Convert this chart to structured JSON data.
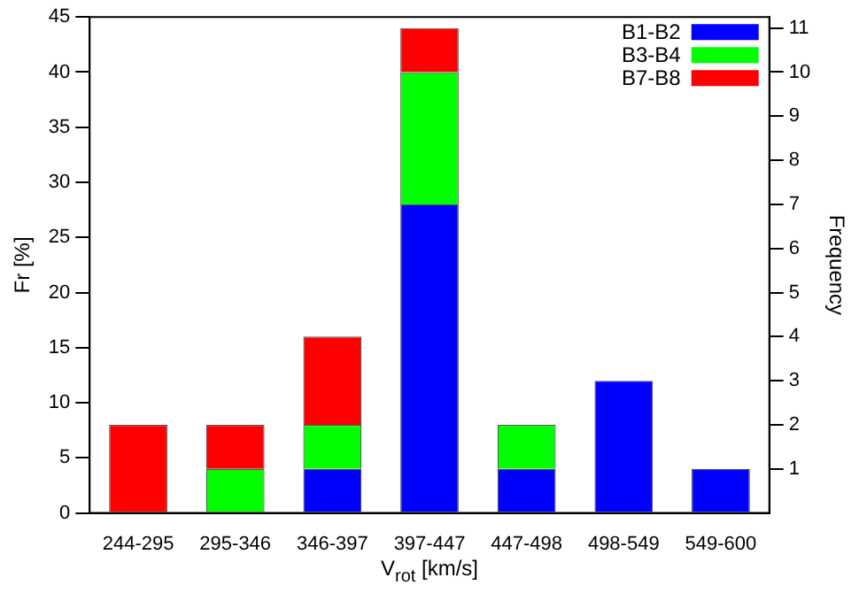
{
  "chart_data": {
    "type": "bar",
    "stacked": true,
    "xlabel": "V$_{rot}$ [km/s]",
    "ylabel": "Fr [%]",
    "y2label": "Frequency",
    "categories": [
      "244-295",
      "295-346",
      "346-397",
      "397-447",
      "447-498",
      "498-549",
      "549-600"
    ],
    "series": [
      {
        "name": "B1-B2",
        "color": "#0000ff",
        "values": [
          0,
          0,
          4,
          28,
          4,
          12,
          4
        ]
      },
      {
        "name": "B3-B4",
        "color": "#00ff00",
        "values": [
          0,
          4,
          4,
          12,
          4,
          0,
          0
        ]
      },
      {
        "name": "B7-B8",
        "color": "#ff0000",
        "values": [
          8,
          4,
          8,
          4,
          0,
          0,
          0
        ]
      }
    ],
    "ylim": [
      0,
      45
    ],
    "yticks": [
      0,
      5,
      10,
      15,
      20,
      25,
      30,
      35,
      40,
      45
    ],
    "y2lim": [
      0,
      11.25
    ],
    "y2ticks": [
      1,
      2,
      3,
      4,
      5,
      6,
      7,
      8,
      9,
      10,
      11
    ],
    "legend": "top right",
    "grid": false
  }
}
